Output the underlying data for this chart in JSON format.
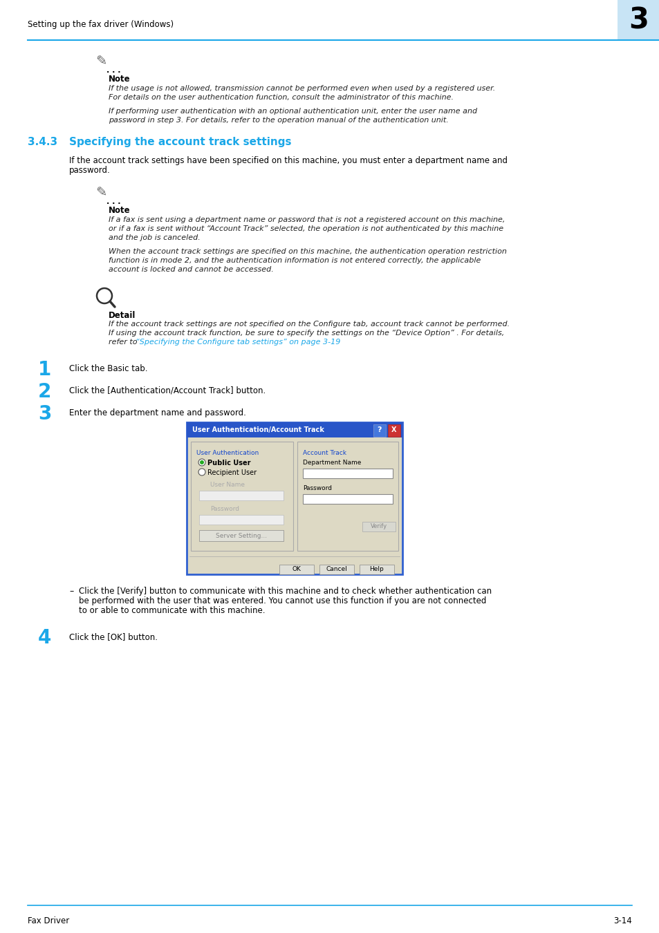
{
  "bg_color": "#ffffff",
  "header_text": "Setting up the fax driver (Windows)",
  "header_chapter": "3",
  "header_line_color": "#1aa7e8",
  "header_box_color": "#c8e4f5",
  "footer_text_left": "Fax Driver",
  "footer_text_right": "3-14",
  "footer_line_color": "#1aa7e8",
  "section_number": "3.4.3",
  "section_title": "Specifying the account track settings",
  "section_color": "#1aa7e8",
  "body_text_color": "#000000",
  "italic_text_color": "#222222",
  "note_bold": "Note",
  "note1_lines": [
    "If the usage is not allowed, transmission cannot be performed even when used by a registered user.",
    "For details on the user authentication function, consult the administrator of this machine."
  ],
  "note1b_lines": [
    "If performing user authentication with an optional authentication unit, enter the user name and",
    "password in step 3. For details, refer to the operation manual of the authentication unit."
  ],
  "intro_lines": [
    "If the account track settings have been specified on this machine, you must enter a department name and",
    "password."
  ],
  "note2_lines": [
    "If a fax is sent using a department name or password that is not a registered account on this machine,",
    "or if a fax is sent without “Account Track” selected, the operation is not authenticated by this machine",
    "and the job is canceled."
  ],
  "note2b_lines": [
    "When the account track settings are specified on this machine, the authentication operation restriction",
    "function is in mode 2, and the authentication information is not entered correctly, the applicable",
    "account is locked and cannot be accessed."
  ],
  "detail_bold": "Detail",
  "detail_lines": [
    "If the account track settings are not specified on the Configure tab, account track cannot be performed.",
    "If using the account track function, be sure to specify the settings on the “Device Option” . For details,",
    "refer to “Specifying the Configure tab settings” on page 3-19."
  ],
  "detail_link": "“Specifying the Configure tab settings” on page 3-19",
  "step1": "Click the Basic tab.",
  "step2": "Click the [Authentication/Account Track] button.",
  "step3": "Enter the department name and password.",
  "step4": "Click the [OK] button.",
  "bullet_lines": [
    "Click the [Verify] button to communicate with this machine and to check whether authentication can",
    "be performed with the user that was entered. You cannot use this function if you are not connected",
    "to or able to communicate with this machine."
  ]
}
